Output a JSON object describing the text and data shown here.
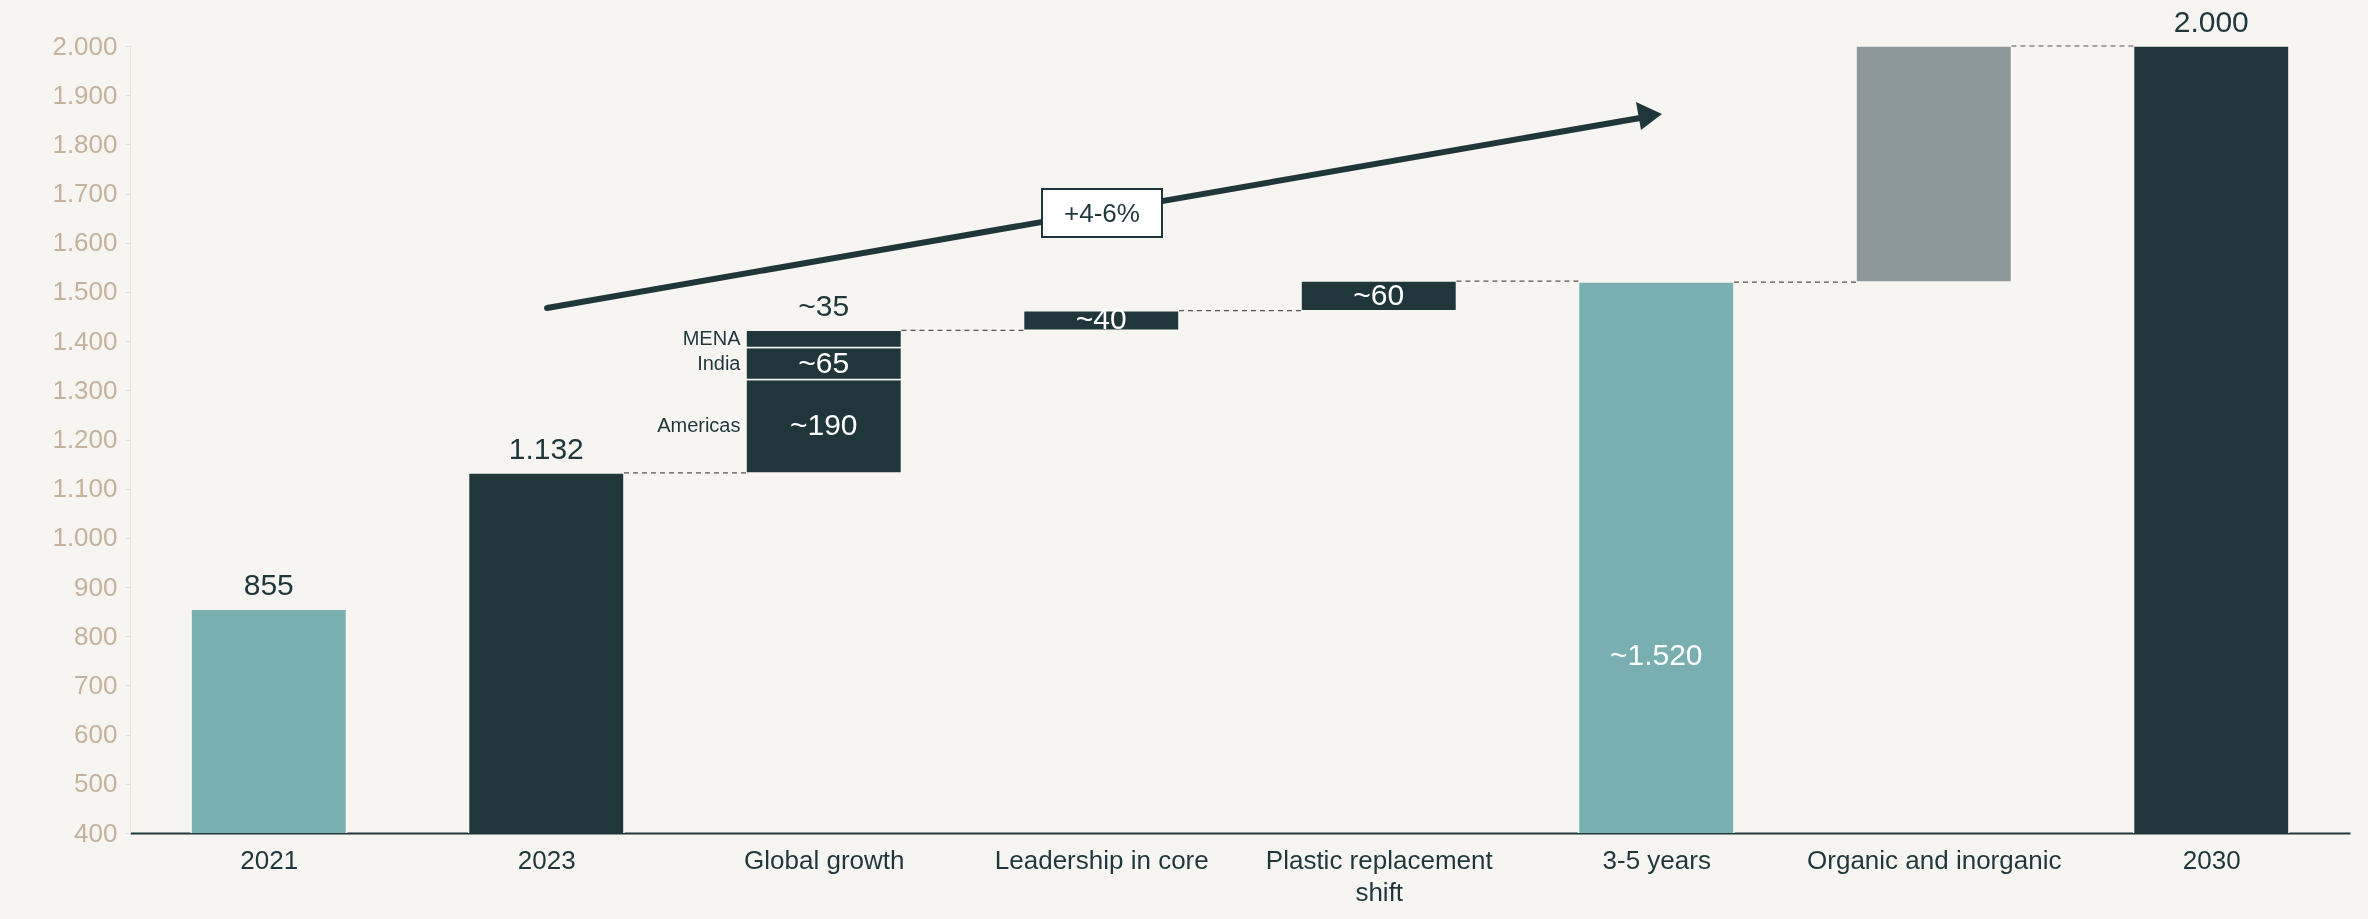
{
  "chart_data": {
    "type": "bar",
    "categories": [
      "2021",
      "2023",
      "Global growth",
      "Leadership in core",
      "Plastic replacement shift",
      "3-5 years",
      "Organic and inorganic",
      "2030"
    ],
    "series": [
      {
        "colors": [
          "#7aafb2",
          "#1f373b",
          null,
          "#1f373b",
          "#1f373b",
          "#7aafb2",
          "#8c9899",
          "#1f373b"
        ],
        "values": [
          855,
          1132,
          null,
          40,
          60,
          1520,
          480,
          2000
        ],
        "base": [
          null,
          null,
          null,
          1422,
          1462,
          null,
          1520,
          null
        ],
        "value_labels": [
          "855",
          "1.132",
          null,
          "~40",
          "~60",
          "~1.520",
          null,
          "2.000"
        ]
      },
      {
        "name": "Americas",
        "color": "#1f373b",
        "values": [
          null,
          null,
          190,
          null,
          null,
          null,
          null,
          null
        ],
        "base": [
          null,
          null,
          1132,
          null,
          null,
          null,
          null,
          null
        ],
        "value_labels": [
          null,
          null,
          "~190",
          null,
          null,
          null,
          null,
          null
        ]
      },
      {
        "name": "India",
        "color": "#1f373b",
        "values": [
          null,
          null,
          65,
          null,
          null,
          null,
          null,
          null
        ],
        "base": [
          null,
          null,
          1322,
          null,
          null,
          null,
          null,
          null
        ],
        "value_labels": [
          null,
          null,
          "~65",
          null,
          null,
          null,
          null,
          null
        ]
      },
      {
        "name": "MENA",
        "color": "#1f373b",
        "values": [
          null,
          null,
          35,
          null,
          null,
          null,
          null,
          null
        ],
        "base": [
          null,
          null,
          1387,
          null,
          null,
          null,
          null,
          null
        ],
        "value_labels": [
          null,
          null,
          "~35",
          null,
          null,
          null,
          null,
          null
        ]
      }
    ],
    "ylim": [
      400,
      2000
    ],
    "yticks": [
      400,
      500,
      600,
      700,
      800,
      900,
      {
        "value": 1000,
        "label": "1.000"
      },
      {
        "value": 1100,
        "label": "1.100"
      },
      {
        "value": 1200,
        "label": "1.200"
      },
      {
        "value": 1300,
        "label": "1.300"
      },
      {
        "value": 1400,
        "label": "1.400"
      },
      {
        "value": 1500,
        "label": "1.500"
      },
      {
        "value": 1600,
        "label": "1.600"
      },
      {
        "value": 1700,
        "label": "1.700"
      },
      {
        "value": 1800,
        "label": "1.800"
      },
      {
        "value": 1900,
        "label": "1.900"
      },
      {
        "value": 2000,
        "label": "2.000"
      }
    ],
    "annotations": [
      "+4-6%"
    ]
  }
}
